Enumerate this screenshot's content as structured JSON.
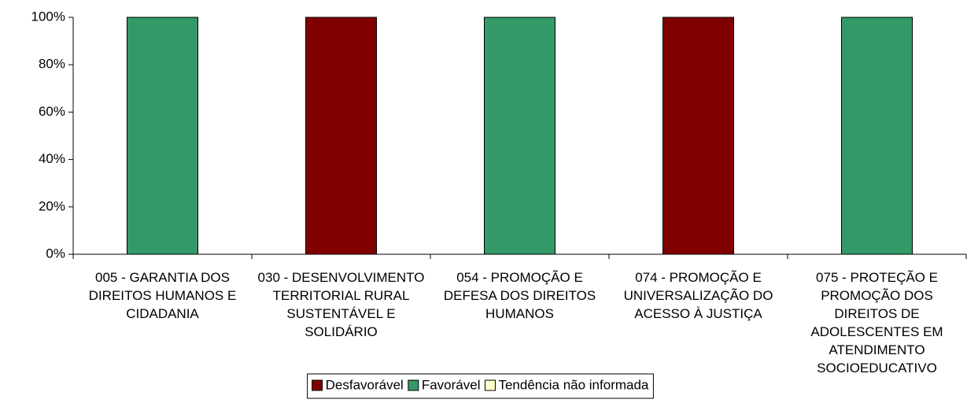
{
  "chart_data": {
    "type": "stacked_bar",
    "categories": [
      "005 - GARANTIA DOS DIREITOS HUMANOS E CIDADANIA",
      "030 - DESENVOLVIMENTO TERRITORIAL RURAL SUSTENTÁVEL E SOLIDÁRIO",
      "054 - PROMOÇÃO E DEFESA DOS DIREITOS HUMANOS",
      "074 - PROMOÇÃO E UNIVERSALIZAÇÃO DO ACESSO À JUSTIÇA",
      "075 - PROTEÇÃO E PROMOÇÃO DOS DIREITOS DE ADOLESCENTES EM ATENDIMENTO SOCIOEDUCATIVO"
    ],
    "series": [
      {
        "name": "Desfavorável",
        "color": "#800000",
        "values": [
          0,
          100,
          0,
          100,
          0
        ]
      },
      {
        "name": "Favorável",
        "color": "#339966",
        "values": [
          100,
          0,
          100,
          0,
          100
        ]
      },
      {
        "name": "Tendência não informada",
        "color": "#ffffcc",
        "values": [
          0,
          0,
          0,
          0,
          0
        ]
      }
    ],
    "ylim": [
      0,
      100
    ],
    "yticks": [
      {
        "value": 0,
        "label": "0%"
      },
      {
        "value": 20,
        "label": "20%"
      },
      {
        "value": 40,
        "label": "40%"
      },
      {
        "value": 60,
        "label": "60%"
      },
      {
        "value": 80,
        "label": "80%"
      },
      {
        "value": 100,
        "label": "100%"
      }
    ],
    "legend": "bottom"
  }
}
